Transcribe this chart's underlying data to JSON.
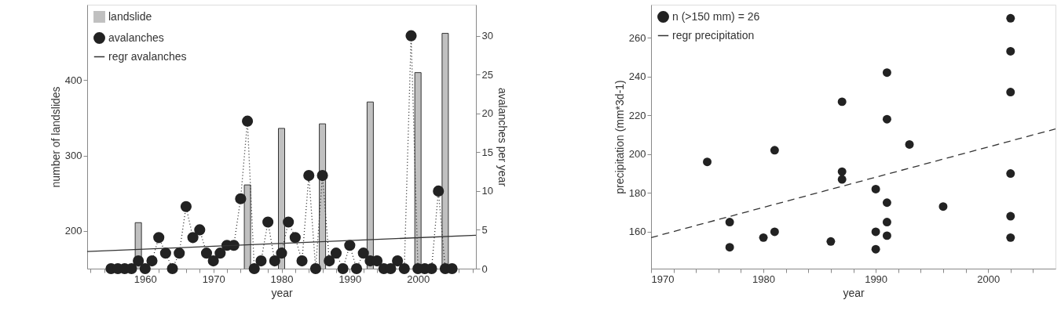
{
  "chart_data": [
    {
      "type": "bar",
      "xlabel": "year",
      "ylabel": "number of landslides",
      "y2label": "avalanches per year",
      "legend": "top left",
      "xlim": [
        1951.5,
        2008.5
      ],
      "xticks": [
        {
          "value": 1952,
          "label": null
        },
        {
          "value": 1954,
          "label": null
        },
        {
          "value": 1956,
          "label": null
        },
        {
          "value": 1958,
          "label": null
        },
        1960,
        {
          "value": 1962,
          "label": null
        },
        {
          "value": 1964,
          "label": null
        },
        {
          "value": 1966,
          "label": null
        },
        {
          "value": 1968,
          "label": null
        },
        1970,
        {
          "value": 1972,
          "label": null
        },
        {
          "value": 1974,
          "label": null
        },
        {
          "value": 1976,
          "label": null
        },
        {
          "value": 1978,
          "label": null
        },
        1980,
        {
          "value": 1982,
          "label": null
        },
        {
          "value": 1984,
          "label": null
        },
        {
          "value": 1986,
          "label": null
        },
        {
          "value": 1988,
          "label": null
        },
        1990,
        {
          "value": 1992,
          "label": null
        },
        {
          "value": 1994,
          "label": null
        },
        {
          "value": 1996,
          "label": null
        },
        {
          "value": 1998,
          "label": null
        },
        2000,
        {
          "value": 2002,
          "label": null
        },
        {
          "value": 2004,
          "label": null
        },
        {
          "value": 2006,
          "label": null
        },
        {
          "value": 2008,
          "label": null
        }
      ],
      "ylim": [
        150,
        500
      ],
      "yticks": [
        200,
        300,
        400
      ],
      "y2lim": [
        0,
        34
      ],
      "y2ticks": [
        0,
        5,
        10,
        15,
        20,
        25,
        30
      ],
      "series": [
        {
          "name": "landslide",
          "color": "#c0c0c0",
          "x": [
            1959,
            1975,
            1980,
            1986,
            1993,
            2000,
            2004
          ],
          "values": [
            211,
            261,
            336,
            342,
            371,
            410,
            462
          ]
        },
        {
          "name": "avalanches",
          "type": "line",
          "axis": "y2",
          "marker": "circle",
          "line_style": "dotted",
          "color": "#222222",
          "x": [
            1955,
            1956,
            1957,
            1958,
            1959,
            1960,
            1961,
            1962,
            1963,
            1964,
            1965,
            1966,
            1967,
            1968,
            1969,
            1970,
            1971,
            1972,
            1973,
            1974,
            1975,
            1976,
            1977,
            1978,
            1979,
            1980,
            1981,
            1982,
            1983,
            1984,
            1985,
            1986,
            1987,
            1988,
            1989,
            1990,
            1991,
            1992,
            1993,
            1994,
            1995,
            1996,
            1997,
            1998,
            1999,
            2000,
            2001,
            2002,
            2003,
            2004,
            2005
          ],
          "values": [
            0,
            0,
            0,
            0,
            1,
            0,
            1,
            4,
            2,
            0,
            2,
            8,
            4,
            5,
            2,
            1,
            2,
            3,
            3,
            9,
            19,
            0,
            1,
            6,
            1,
            2,
            6,
            4,
            1,
            12,
            0,
            12,
            1,
            2,
            0,
            3,
            0,
            2,
            1,
            1,
            0,
            0,
            1,
            0,
            30,
            0,
            0,
            0,
            10,
            0,
            0
          ]
        },
        {
          "name": "regr avalanches",
          "type": "line",
          "axis": "y2",
          "marker": "none",
          "line_style": "solid",
          "color": "#333333",
          "x": [
            1951.5,
            2008.5
          ],
          "values": [
            2.2,
            4.3
          ]
        }
      ]
    },
    {
      "type": "scatter",
      "xlabel": "year",
      "ylabel": "precipitation (mm*3d-1)",
      "legend": "top left",
      "xlim": [
        1970,
        2006
      ],
      "xticks": [
        1970,
        {
          "value": 1972,
          "label": null
        },
        {
          "value": 1974,
          "label": null
        },
        {
          "value": 1976,
          "label": null
        },
        {
          "value": 1978,
          "label": null
        },
        1980,
        {
          "value": 1982,
          "label": null
        },
        {
          "value": 1984,
          "label": null
        },
        {
          "value": 1986,
          "label": null
        },
        {
          "value": 1988,
          "label": null
        },
        1990,
        {
          "value": 1992,
          "label": null
        },
        {
          "value": 1994,
          "label": null
        },
        {
          "value": 1996,
          "label": null
        },
        {
          "value": 1998,
          "label": null
        },
        2000,
        {
          "value": 2002,
          "label": null
        },
        {
          "value": 2004,
          "label": null
        }
      ],
      "ylim": [
        141,
        277
      ],
      "yticks": [
        160,
        180,
        200,
        220,
        240,
        260
      ],
      "series": [
        {
          "name": "n (>150 mm) = 26",
          "marker": "circle",
          "color": "#222222",
          "x": [
            1975,
            1977,
            1977,
            1980,
            1981,
            1981,
            1986,
            1987,
            1987,
            1987,
            1990,
            1990,
            1990,
            1991,
            1991,
            1991,
            1991,
            1991,
            1993,
            1996,
            2002,
            2002,
            2002,
            2002,
            2002,
            2002
          ],
          "values": [
            196,
            165,
            152,
            157,
            160,
            202,
            155,
            227,
            191,
            187,
            182,
            160,
            151,
            242,
            218,
            175,
            165,
            158,
            205,
            173,
            270,
            253,
            232,
            190,
            168,
            157
          ]
        },
        {
          "name": "regr precipitation",
          "type": "line",
          "marker": "none",
          "line_style": "dashed",
          "color": "#333333",
          "x": [
            1970,
            2006
          ],
          "values": [
            157,
            213
          ]
        }
      ]
    }
  ]
}
